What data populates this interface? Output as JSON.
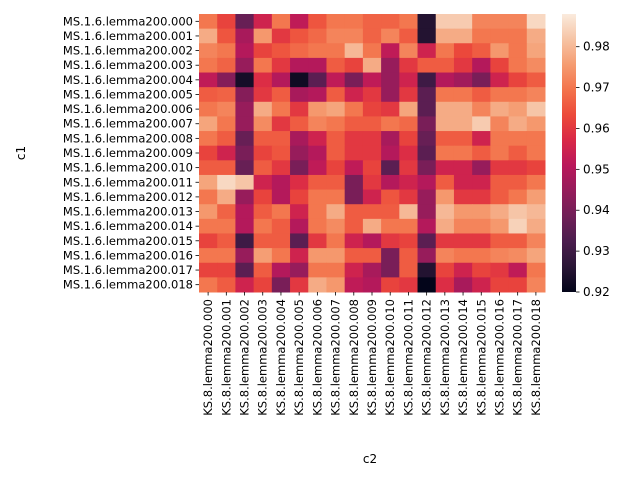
{
  "chart_data": {
    "type": "heatmap",
    "xlabel": "c2",
    "ylabel": "c1",
    "row_labels": [
      "MS.1.6.lemma200.000",
      "MS.1.6.lemma200.001",
      "MS.1.6.lemma200.002",
      "MS.1.6.lemma200.003",
      "MS.1.6.lemma200.004",
      "MS.1.6.lemma200.005",
      "MS.1.6.lemma200.006",
      "MS.1.6.lemma200.007",
      "MS.1.6.lemma200.008",
      "MS.1.6.lemma200.009",
      "MS.1.6.lemma200.010",
      "MS.1.6.lemma200.011",
      "MS.1.6.lemma200.012",
      "MS.1.6.lemma200.013",
      "MS.1.6.lemma200.014",
      "MS.1.6.lemma200.015",
      "MS.1.6.lemma200.016",
      "MS.1.6.lemma200.017",
      "MS.1.6.lemma200.018"
    ],
    "col_labels": [
      "KS.8.lemma200.000",
      "KS.8.lemma200.001",
      "KS.8.lemma200.002",
      "KS.8.lemma200.003",
      "KS.8.lemma200.004",
      "KS.8.lemma200.005",
      "KS.8.lemma200.006",
      "KS.8.lemma200.007",
      "KS.8.lemma200.008",
      "KS.8.lemma200.009",
      "KS.8.lemma200.010",
      "KS.8.lemma200.011",
      "KS.8.lemma200.012",
      "KS.8.lemma200.013",
      "KS.8.lemma200.014",
      "KS.8.lemma200.015",
      "KS.8.lemma200.016",
      "KS.8.lemma200.017",
      "KS.8.lemma200.018"
    ],
    "vmin": 0.92,
    "vmax": 0.988,
    "colorbar_ticks": [
      0.92,
      0.93,
      0.94,
      0.95,
      0.96,
      0.97,
      0.98
    ],
    "colormap": [
      "#03051a",
      "#2a1636",
      "#4b1d4e",
      "#701f57",
      "#951c5b",
      "#b9185b",
      "#d92847",
      "#ec4a3a",
      "#f3734c",
      "#f59c71",
      "#f6c4a5",
      "#faebdd"
    ],
    "values": [
      [
        0.97,
        0.962,
        0.937,
        0.955,
        0.97,
        0.952,
        0.965,
        0.97,
        0.97,
        0.967,
        0.967,
        0.97,
        0.925,
        0.983,
        0.983,
        0.972,
        0.972,
        0.972,
        0.985
      ],
      [
        0.978,
        0.965,
        0.948,
        0.975,
        0.96,
        0.965,
        0.968,
        0.972,
        0.972,
        0.967,
        0.972,
        0.966,
        0.925,
        0.978,
        0.978,
        0.97,
        0.97,
        0.97,
        0.978
      ],
      [
        0.972,
        0.97,
        0.95,
        0.962,
        0.965,
        0.968,
        0.97,
        0.97,
        0.98,
        0.97,
        0.952,
        0.972,
        0.955,
        0.97,
        0.963,
        0.966,
        0.975,
        0.97,
        0.977
      ],
      [
        0.97,
        0.967,
        0.945,
        0.97,
        0.96,
        0.95,
        0.95,
        0.966,
        0.962,
        0.978,
        0.945,
        0.96,
        0.966,
        0.966,
        0.96,
        0.95,
        0.962,
        0.97,
        0.973
      ],
      [
        0.952,
        0.942,
        0.923,
        0.958,
        0.95,
        0.922,
        0.935,
        0.952,
        0.94,
        0.952,
        0.945,
        0.955,
        0.93,
        0.95,
        0.947,
        0.94,
        0.955,
        0.962,
        0.966
      ],
      [
        0.966,
        0.967,
        0.942,
        0.96,
        0.966,
        0.948,
        0.95,
        0.966,
        0.955,
        0.96,
        0.945,
        0.96,
        0.935,
        0.97,
        0.97,
        0.966,
        0.97,
        0.97,
        0.972
      ],
      [
        0.97,
        0.972,
        0.945,
        0.978,
        0.97,
        0.96,
        0.975,
        0.977,
        0.97,
        0.962,
        0.96,
        0.977,
        0.935,
        0.978,
        0.978,
        0.972,
        0.978,
        0.976,
        0.982
      ],
      [
        0.977,
        0.97,
        0.945,
        0.973,
        0.96,
        0.966,
        0.972,
        0.97,
        0.966,
        0.966,
        0.97,
        0.968,
        0.94,
        0.978,
        0.978,
        0.983,
        0.972,
        0.978,
        0.975
      ],
      [
        0.97,
        0.966,
        0.937,
        0.966,
        0.966,
        0.948,
        0.955,
        0.966,
        0.96,
        0.96,
        0.948,
        0.962,
        0.937,
        0.966,
        0.966,
        0.955,
        0.97,
        0.97,
        0.97
      ],
      [
        0.962,
        0.955,
        0.94,
        0.962,
        0.965,
        0.945,
        0.95,
        0.966,
        0.96,
        0.96,
        0.95,
        0.958,
        0.935,
        0.97,
        0.97,
        0.966,
        0.97,
        0.966,
        0.97
      ],
      [
        0.966,
        0.966,
        0.937,
        0.966,
        0.96,
        0.94,
        0.952,
        0.962,
        0.952,
        0.962,
        0.935,
        0.96,
        0.94,
        0.955,
        0.955,
        0.945,
        0.96,
        0.96,
        0.962
      ],
      [
        0.977,
        0.985,
        0.982,
        0.955,
        0.95,
        0.958,
        0.966,
        0.966,
        0.94,
        0.96,
        0.95,
        0.955,
        0.95,
        0.966,
        0.955,
        0.955,
        0.966,
        0.966,
        0.97
      ],
      [
        0.97,
        0.978,
        0.945,
        0.962,
        0.95,
        0.962,
        0.97,
        0.97,
        0.94,
        0.955,
        0.965,
        0.96,
        0.945,
        0.975,
        0.96,
        0.96,
        0.966,
        0.97,
        0.976
      ],
      [
        0.975,
        0.967,
        0.95,
        0.966,
        0.97,
        0.955,
        0.97,
        0.978,
        0.966,
        0.966,
        0.966,
        0.98,
        0.945,
        0.98,
        0.975,
        0.975,
        0.978,
        0.982,
        0.98
      ],
      [
        0.97,
        0.97,
        0.95,
        0.97,
        0.966,
        0.95,
        0.97,
        0.973,
        0.966,
        0.978,
        0.97,
        0.97,
        0.95,
        0.978,
        0.972,
        0.972,
        0.975,
        0.984,
        0.978
      ],
      [
        0.962,
        0.966,
        0.93,
        0.966,
        0.966,
        0.935,
        0.96,
        0.97,
        0.955,
        0.95,
        0.96,
        0.962,
        0.935,
        0.96,
        0.96,
        0.96,
        0.966,
        0.966,
        0.972
      ],
      [
        0.97,
        0.97,
        0.945,
        0.976,
        0.97,
        0.955,
        0.975,
        0.975,
        0.966,
        0.966,
        0.94,
        0.966,
        0.945,
        0.972,
        0.97,
        0.97,
        0.972,
        0.973,
        0.977
      ],
      [
        0.962,
        0.962,
        0.935,
        0.966,
        0.95,
        0.945,
        0.97,
        0.97,
        0.955,
        0.948,
        0.94,
        0.966,
        0.925,
        0.962,
        0.955,
        0.962,
        0.96,
        0.952,
        0.97
      ],
      [
        0.97,
        0.966,
        0.955,
        0.962,
        0.94,
        0.96,
        0.978,
        0.975,
        0.952,
        0.95,
        0.962,
        0.96,
        0.92,
        0.958,
        0.948,
        0.955,
        0.962,
        0.962,
        0.972
      ]
    ]
  }
}
